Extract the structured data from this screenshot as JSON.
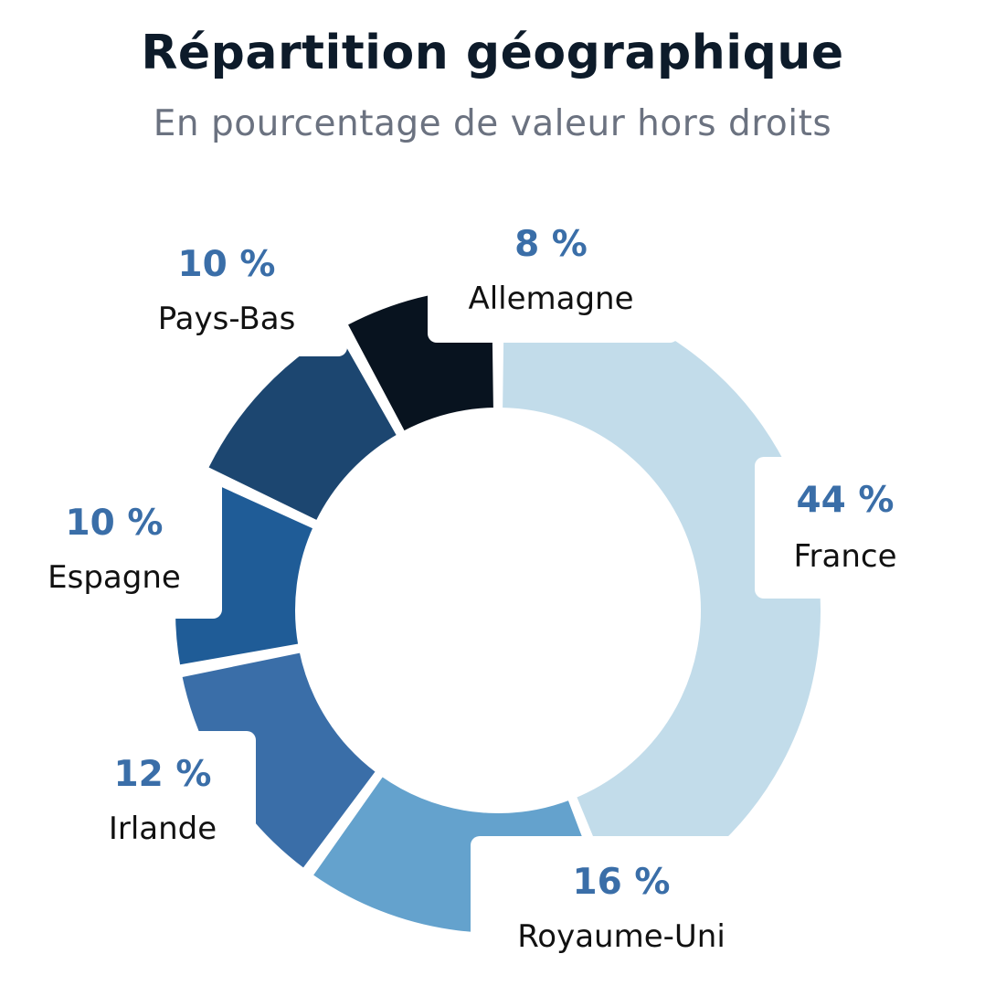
{
  "title": "Répartition géographique",
  "subtitle": "En pourcentage de valeur hors droits",
  "chart_data": {
    "type": "pie",
    "title": "Répartition géographique",
    "subtitle": "En pourcentage de valeur hors droits",
    "unit": "%",
    "categories": [
      "France",
      "Royaume-Uni",
      "Irlande",
      "Espagne",
      "Pays-Bas",
      "Allemagne"
    ],
    "values": [
      44,
      16,
      12,
      10,
      10,
      8
    ],
    "value_labels": [
      "44 %",
      "16 %",
      "12 %",
      "10 %",
      "10 %",
      "8 %"
    ],
    "colors": [
      "#c2dcea",
      "#64a2cd",
      "#3a6ea8",
      "#1f5c97",
      "#1c4670",
      "#08131f"
    ],
    "legend": "none"
  }
}
